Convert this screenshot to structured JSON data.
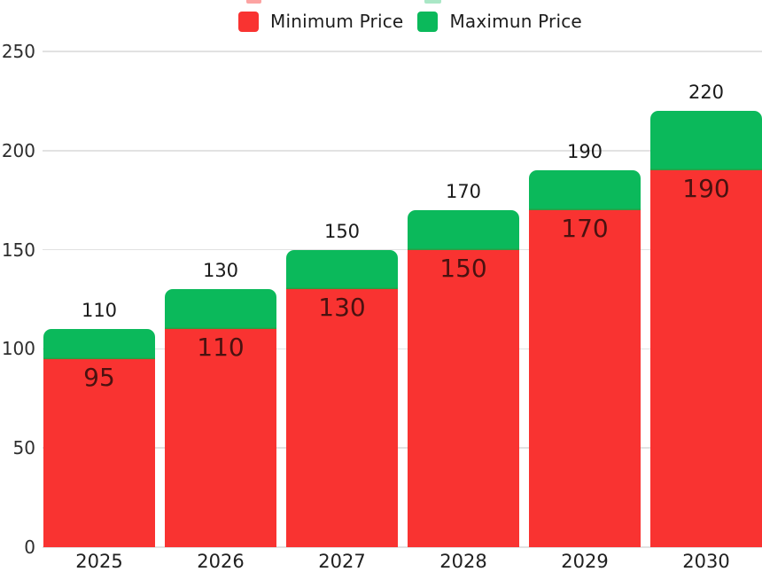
{
  "legend": {
    "items": [
      {
        "label": "Minimum Price",
        "color": "#f93331"
      },
      {
        "label": "Maximun Price",
        "color": "#0bb95b"
      }
    ]
  },
  "chart_data": {
    "type": "bar",
    "subtype": "stacked-range-column",
    "title": "",
    "xlabel": "",
    "ylabel": "",
    "categories": [
      "2025",
      "2026",
      "2027",
      "2028",
      "2029",
      "2030"
    ],
    "series": [
      {
        "name": "Minimum Price",
        "color": "#f93331",
        "values": [
          95,
          110,
          130,
          150,
          170,
          190
        ]
      },
      {
        "name": "Maximun Price",
        "color": "#0bb95b",
        "values": [
          110,
          130,
          150,
          170,
          190,
          220
        ]
      }
    ],
    "bar_top_labels": [
      "110",
      "130",
      "150",
      "170",
      "190",
      "220"
    ],
    "bar_inner_labels": [
      "95",
      "110",
      "130",
      "150",
      "170",
      "190"
    ],
    "yticks": [
      "0",
      "50",
      "100",
      "150",
      "200",
      "250"
    ],
    "ylim": [
      0,
      250
    ],
    "grid": "horizontal",
    "legend_position": "top"
  },
  "colors": {
    "min_bar": "#f93331",
    "max_bar": "#0bb95b",
    "gridline": "#e2e2e2",
    "inner_label": "#4a1210",
    "top_label": "#1a1a1a",
    "axis_label": "#2e2e2e",
    "background": "#ffffff"
  }
}
